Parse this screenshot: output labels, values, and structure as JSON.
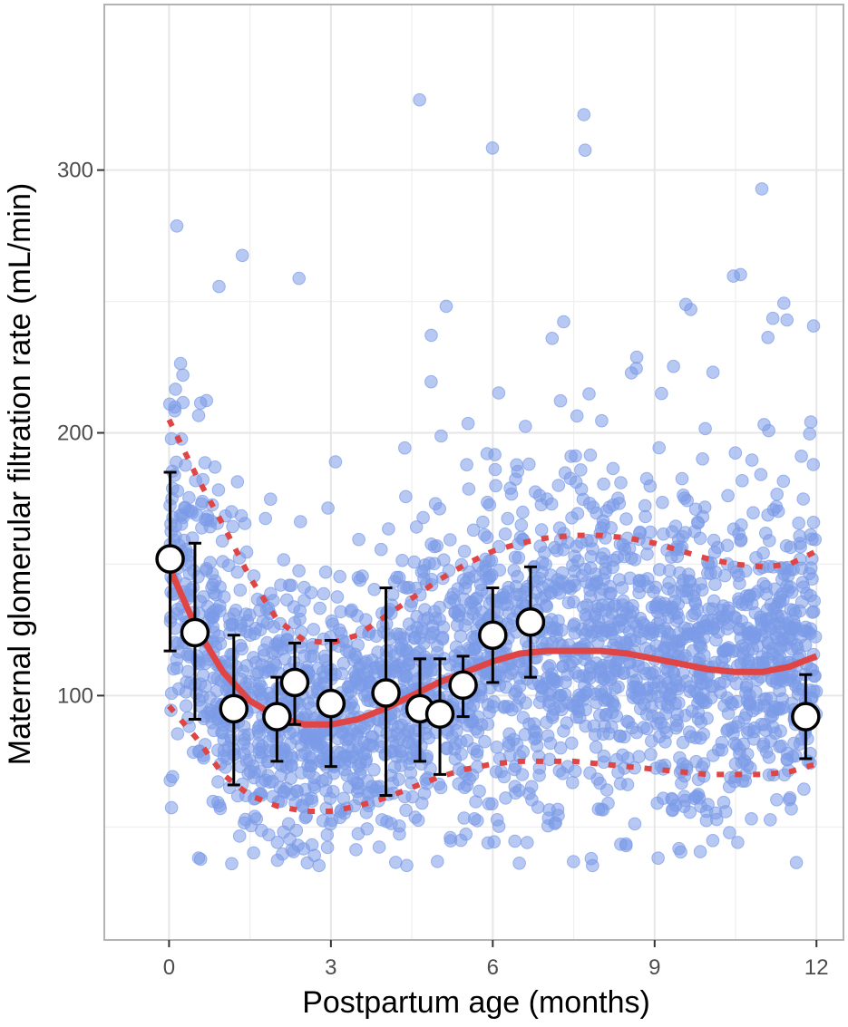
{
  "chart_data": {
    "type": "scatter",
    "title": "",
    "xlabel": "Postpartum age (months)",
    "ylabel": "Maternal glomerular filtration rate (mL/min)",
    "xlim": [
      -1.2,
      12.5
    ],
    "ylim": [
      7,
      363
    ],
    "x_ticks": [
      0,
      3,
      6,
      9,
      12
    ],
    "y_ticks": [
      100,
      200,
      300
    ],
    "grid": true,
    "legend": "none",
    "colors": {
      "points": "#7b9be8",
      "fit_line": "#e04545",
      "band_line": "#e04545",
      "group_marker_fill": "#ffffff",
      "group_marker_stroke": "#000000",
      "panel_border": "#b3b3b3",
      "grid": "#e6e6e6",
      "axis_text": "#4d4d4d"
    },
    "points_note_count": 2600,
    "fit_line": {
      "x": [
        0,
        0.5,
        1,
        1.5,
        2,
        2.5,
        3,
        3.5,
        4,
        4.5,
        5,
        5.5,
        6,
        6.5,
        7,
        7.5,
        8,
        8.5,
        9,
        9.5,
        10,
        10.5,
        11,
        11.5,
        12
      ],
      "y": [
        149,
        126,
        109,
        98,
        92,
        89,
        89,
        91,
        95,
        100,
        105,
        109,
        113,
        116,
        117,
        117,
        117,
        116,
        114,
        112,
        110,
        109,
        109,
        111,
        115
      ]
    },
    "upper_band": {
      "x": [
        0,
        0.5,
        1,
        1.5,
        2,
        2.5,
        3,
        3.5,
        4,
        4.5,
        5,
        5.5,
        6,
        6.5,
        7,
        7.5,
        8,
        8.5,
        9,
        9.5,
        10,
        10.5,
        11,
        11.5,
        12
      ],
      "y": [
        205,
        184,
        165,
        145,
        129,
        121,
        120,
        123,
        130,
        137,
        144,
        150,
        155,
        158,
        160,
        161,
        161,
        160,
        158,
        155,
        152,
        150,
        149,
        150,
        155
      ]
    },
    "lower_band": {
      "x": [
        0,
        0.5,
        1,
        1.5,
        2,
        2.5,
        3,
        3.5,
        4,
        4.5,
        5,
        5.5,
        6,
        6.5,
        7,
        7.5,
        8,
        8.5,
        9,
        9.5,
        10,
        10.5,
        11,
        11.5,
        12
      ],
      "y": [
        96,
        84,
        70,
        62,
        58,
        56,
        56,
        58,
        61,
        65,
        69,
        72,
        74,
        75,
        75,
        75,
        74,
        73,
        72,
        71,
        70,
        70,
        70,
        71,
        74
      ]
    },
    "group_means": [
      {
        "x": 0.02,
        "y": 152,
        "lo": 117,
        "hi": 185
      },
      {
        "x": 0.48,
        "y": 124,
        "lo": 91,
        "hi": 158
      },
      {
        "x": 1.2,
        "y": 95,
        "lo": 66,
        "hi": 123
      },
      {
        "x": 2.0,
        "y": 92,
        "lo": 75,
        "hi": 107
      },
      {
        "x": 2.33,
        "y": 105,
        "lo": 89,
        "hi": 120
      },
      {
        "x": 3.0,
        "y": 97,
        "lo": 73,
        "hi": 121
      },
      {
        "x": 4.02,
        "y": 101,
        "lo": 62,
        "hi": 141
      },
      {
        "x": 4.65,
        "y": 95,
        "lo": 75,
        "hi": 114
      },
      {
        "x": 5.02,
        "y": 93,
        "lo": 70,
        "hi": 114
      },
      {
        "x": 5.45,
        "y": 104,
        "lo": 92,
        "hi": 115
      },
      {
        "x": 6.0,
        "y": 123,
        "lo": 105,
        "hi": 141
      },
      {
        "x": 6.7,
        "y": 128,
        "lo": 107,
        "hi": 149
      },
      {
        "x": 11.8,
        "y": 92,
        "lo": 76,
        "hi": 108
      }
    ]
  }
}
